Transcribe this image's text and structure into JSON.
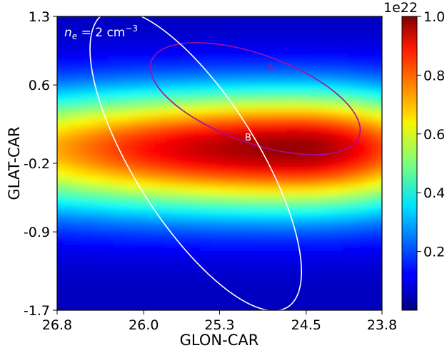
{
  "chart_data": {
    "type": "heatmap",
    "title": "",
    "annotation": "n_e = 2 cm^-3",
    "annotation_parts": {
      "var": "n",
      "sub": "e",
      "eq": " = 2 cm",
      "sup": "−3"
    },
    "xlabel": "GLON-CAR",
    "ylabel": "GLAT-CAR",
    "xlim": [
      26.8,
      23.8
    ],
    "ylim": [
      -1.7,
      1.3
    ],
    "x_ticks": [
      26.8,
      26.0,
      25.3,
      24.5,
      23.8
    ],
    "x_tick_labels": [
      "26.8",
      "26.0",
      "25.3",
      "24.5",
      "23.8"
    ],
    "y_ticks": [
      1.3,
      0.6,
      -0.2,
      -0.9,
      -1.7
    ],
    "y_tick_labels": [
      "1.3",
      "0.6",
      "-0.2",
      "-0.9",
      "-1.7"
    ],
    "colormap": "jet",
    "colorbar": {
      "exponent_label": "1e22",
      "range": [
        0.0,
        1.0
      ],
      "ticks": [
        0.2,
        0.4,
        0.6,
        0.8,
        1.0
      ],
      "tick_labels": [
        "0.2",
        "0.4",
        "0.6",
        "0.8",
        "1.0"
      ]
    },
    "field_peak": {
      "lon": 24.6,
      "lat": -0.05
    },
    "regions": [
      {
        "label": "A",
        "color": "#a0109e",
        "center_lon": 24.97,
        "center_lat": 0.46,
        "semi_major_deg": 1.02,
        "semi_minor_deg": 0.45,
        "angle_deg": 20
      },
      {
        "label": "B",
        "color": "#ffffff",
        "center_lon": 25.52,
        "center_lat": -0.17,
        "semi_major_deg": 1.6,
        "semi_minor_deg": 0.63,
        "angle_deg": 58
      }
    ]
  }
}
